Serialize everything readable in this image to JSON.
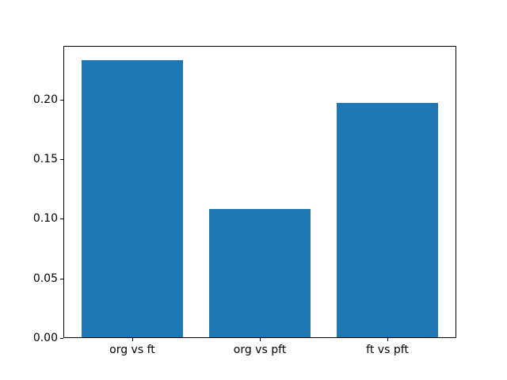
{
  "figure": {
    "background": "#ffffff",
    "frame_color": "#000000",
    "text_color": "#000000"
  },
  "chart_data": {
    "type": "bar",
    "title": "",
    "xlabel": "",
    "ylabel": "",
    "categories": [
      "org vs ft",
      "org vs pft",
      "ft vs pft"
    ],
    "values": [
      0.233,
      0.108,
      0.197
    ],
    "bar_color": "#1f77b4",
    "ylim": [
      0,
      0.245
    ],
    "yticks": [
      0.0,
      0.05,
      0.1,
      0.15,
      0.2
    ],
    "ytick_labels": [
      "0.00",
      "0.05",
      "0.10",
      "0.15",
      "0.20"
    ],
    "grid": false,
    "legend": "none"
  }
}
